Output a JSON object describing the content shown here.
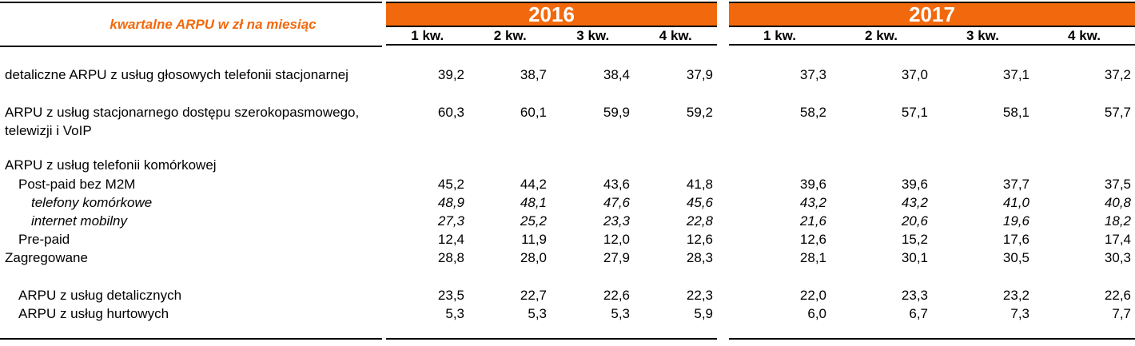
{
  "title": "kwartalne ARPU w zł na miesiąc",
  "colors": {
    "accent_orange": "#F2690D",
    "year_text": "#FFFFFF",
    "body_text": "#000000"
  },
  "year_groups": [
    {
      "year": "2016",
      "quarters": [
        "1 kw.",
        "2 kw.",
        "3 kw.",
        "4 kw."
      ]
    },
    {
      "year": "2017",
      "quarters": [
        "1 kw.",
        "2 kw.",
        "3 kw.",
        "4 kw."
      ]
    }
  ],
  "rows": [
    {
      "label": "detaliczne ARPU z usług głosowych telefonii stacjonarnej",
      "indent": 0,
      "italic": false,
      "v2016": [
        "39,2",
        "38,7",
        "38,4",
        "37,9"
      ],
      "v2017": [
        "37,3",
        "37,0",
        "37,1",
        "37,2"
      ]
    },
    {
      "label": "ARPU z usług stacjonarnego dostępu szerokopasmowego, telewizji i VoIP",
      "indent": 0,
      "italic": false,
      "v2016": [
        "60,3",
        "60,1",
        "59,9",
        "59,2"
      ],
      "v2017": [
        "58,2",
        "57,1",
        "58,1",
        "57,7"
      ]
    },
    {
      "label": "ARPU z usług telefonii komórkowej",
      "indent": 0,
      "italic": false,
      "v2016": [],
      "v2017": []
    },
    {
      "label": "Post-paid bez M2M",
      "indent": 1,
      "italic": false,
      "v2016": [
        "45,2",
        "44,2",
        "43,6",
        "41,8"
      ],
      "v2017": [
        "39,6",
        "39,6",
        "37,7",
        "37,5"
      ]
    },
    {
      "label": "telefony komórkowe",
      "indent": 2,
      "italic": true,
      "v2016": [
        "48,9",
        "48,1",
        "47,6",
        "45,6"
      ],
      "v2017": [
        "43,2",
        "43,2",
        "41,0",
        "40,8"
      ]
    },
    {
      "label": "internet mobilny",
      "indent": 2,
      "italic": true,
      "v2016": [
        "27,3",
        "25,2",
        "23,3",
        "22,8"
      ],
      "v2017": [
        "21,6",
        "20,6",
        "19,6",
        "18,2"
      ]
    },
    {
      "label": "Pre-paid",
      "indent": 1,
      "italic": false,
      "v2016": [
        "12,4",
        "11,9",
        "12,0",
        "12,6"
      ],
      "v2017": [
        "12,6",
        "15,2",
        "17,6",
        "17,4"
      ]
    },
    {
      "label": "Zagregowane",
      "indent": 0,
      "italic": false,
      "v2016": [
        "28,8",
        "28,0",
        "27,9",
        "28,3"
      ],
      "v2017": [
        "28,1",
        "30,1",
        "30,5",
        "30,3"
      ]
    },
    {
      "label": "ARPU z usług detalicznych",
      "indent": 1,
      "italic": false,
      "v2016": [
        "23,5",
        "22,7",
        "22,6",
        "22,3"
      ],
      "v2017": [
        "22,0",
        "23,3",
        "23,2",
        "22,6"
      ]
    },
    {
      "label": "ARPU z usług hurtowych",
      "indent": 1,
      "italic": false,
      "v2016": [
        "5,3",
        "5,3",
        "5,3",
        "5,9"
      ],
      "v2017": [
        "6,0",
        "6,7",
        "7,3",
        "7,7"
      ]
    }
  ]
}
